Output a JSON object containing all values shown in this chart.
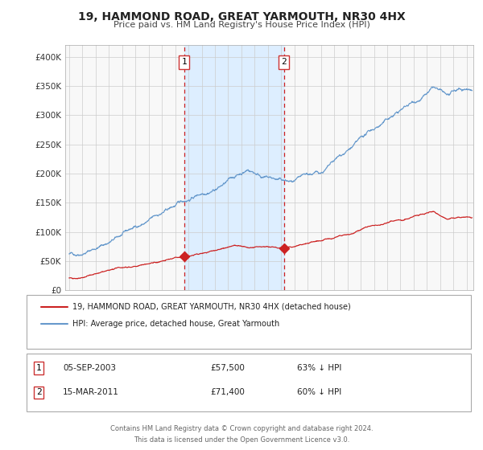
{
  "title": "19, HAMMOND ROAD, GREAT YARMOUTH, NR30 4HX",
  "subtitle": "Price paid vs. HM Land Registry's House Price Index (HPI)",
  "xlim": [
    1994.7,
    2025.5
  ],
  "ylim": [
    0,
    420000
  ],
  "yticks": [
    0,
    50000,
    100000,
    150000,
    200000,
    250000,
    300000,
    350000,
    400000
  ],
  "ytick_labels": [
    "£0",
    "£50K",
    "£100K",
    "£150K",
    "£200K",
    "£250K",
    "£300K",
    "£350K",
    "£400K"
  ],
  "hpi_color": "#6699cc",
  "price_color": "#cc2222",
  "marker_color": "#cc2222",
  "shade_color": "#ddeeff",
  "vline_color": "#cc2222",
  "grid_color": "#cccccc",
  "bg_color": "#f8f8f8",
  "sale1_year": 2003.67,
  "sale1_price": 57500,
  "sale1_label": "1",
  "sale1_date": "05-SEP-2003",
  "sale1_pct": "63%",
  "sale2_year": 2011.2,
  "sale2_price": 71400,
  "sale2_label": "2",
  "sale2_date": "15-MAR-2011",
  "sale2_pct": "60%",
  "legend_line1": "19, HAMMOND ROAD, GREAT YARMOUTH, NR30 4HX (detached house)",
  "legend_line2": "HPI: Average price, detached house, Great Yarmouth",
  "footer1": "Contains HM Land Registry data © Crown copyright and database right 2024.",
  "footer2": "This data is licensed under the Open Government Licence v3.0."
}
